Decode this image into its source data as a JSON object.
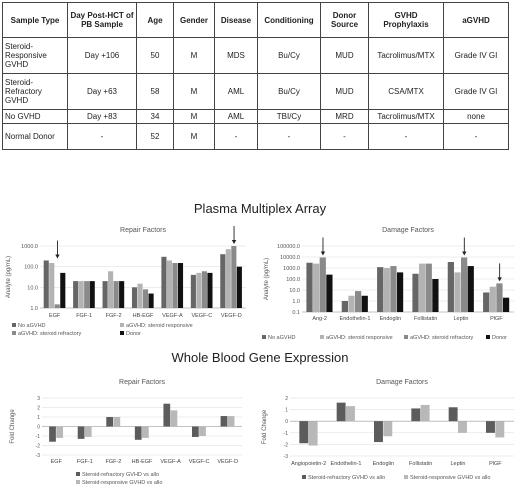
{
  "table": {
    "headers": [
      "Sample Type",
      "Day Post-HCT of PB Sample",
      "Age",
      "Gender",
      "Disease",
      "Conditioning",
      "Donor Source",
      "GVHD Prophylaxis",
      "aGVHD"
    ],
    "rows": [
      [
        "Steroid-Responsive GVHD",
        "Day +106",
        "50",
        "M",
        "MDS",
        "Bu/Cy",
        "MUD",
        "Tacrolimus/MTX",
        "Grade IV GI"
      ],
      [
        "Steroid-Refractory GVHD",
        "Day +63",
        "58",
        "M",
        "AML",
        "Bu/Cy",
        "MUD",
        "CSA/MTX",
        "Grade IV GI"
      ],
      [
        "No GVHD",
        "Day +83",
        "34",
        "M",
        "AML",
        "TBI/Cy",
        "MRD",
        "Tacrolimus/MTX",
        "none"
      ],
      [
        "Normal Donor",
        "-",
        "52",
        "M",
        "-",
        "-",
        "-",
        "-",
        "-"
      ]
    ]
  },
  "section1_title": "Plasma Multiplex Array",
  "section2_title": "Whole Blood Gene Expression",
  "colors": {
    "no_agvhd": "#666666",
    "responsive": "#b3b3b3",
    "refractory": "#8a8a8a",
    "donor": "#111111",
    "wb_refractory": "#5c5c5c",
    "wb_responsive": "#b8b8b8"
  },
  "chart_data": [
    {
      "type": "bar",
      "title": "Repair Factors",
      "ylabel": "Analyte (pg/mL)",
      "scale": "log",
      "ylim": [
        1,
        1000
      ],
      "yticks": [
        1.0,
        10.0,
        100.0,
        1000.0
      ],
      "ytick_labels": [
        "1.0",
        "10.0",
        "100.0",
        "1000.0"
      ],
      "categories": [
        "EGF",
        "FGF-1",
        "FGF-2",
        "HB-EGF",
        "VEGF-A",
        "VEGF-C",
        "VEGF-D"
      ],
      "series": [
        {
          "name": "No aGVHD",
          "values": [
            200,
            20,
            20,
            10,
            300,
            40,
            400
          ]
        },
        {
          "name": "aGVHD: steroid responsive",
          "values": [
            150,
            20,
            60,
            15,
            200,
            50,
            700
          ]
        },
        {
          "name": "aGVHD: steroid refractory",
          "values": [
            1.5,
            20,
            20,
            8,
            150,
            60,
            1000
          ]
        },
        {
          "name": "Donor",
          "values": [
            50,
            20,
            20,
            5,
            150,
            50,
            100
          ]
        }
      ],
      "arrows": [
        "EGF",
        "VEGF-D"
      ],
      "legend": "bottom"
    },
    {
      "type": "bar",
      "title": "Damage Factors",
      "ylabel": "Analyte (pg/mL)",
      "scale": "log",
      "ylim": [
        0.1,
        100000
      ],
      "yticks": [
        0.1,
        1.0,
        10.0,
        100.0,
        1000.0,
        10000.0,
        100000.0
      ],
      "ytick_labels": [
        "0.1",
        "1.0",
        "10.0",
        "100.0",
        "1000.0",
        "10000.0",
        "100000.0"
      ],
      "categories": [
        "Ang-2",
        "Endothelin-1",
        "Endoglin",
        "Follistatin",
        "Leptin",
        "PlGF"
      ],
      "series": [
        {
          "name": "No aGVHD",
          "values": [
            3000,
            1,
            1200,
            300,
            3500,
            6
          ]
        },
        {
          "name": "aGVHD: steroid responsive",
          "values": [
            2500,
            3,
            1000,
            2500,
            400,
            20
          ]
        },
        {
          "name": "aGVHD: steroid refractory",
          "values": [
            9000,
            8,
            1500,
            2500,
            9000,
            40
          ]
        },
        {
          "name": "Donor",
          "values": [
            250,
            3,
            400,
            100,
            1500,
            2
          ]
        }
      ],
      "arrows": [
        "Ang-2",
        "Leptin",
        "PlGF"
      ],
      "legend": "bottom"
    },
    {
      "type": "bar",
      "title": "Repair Factors",
      "ylabel": "Fold Change",
      "ylim": [
        -3,
        3
      ],
      "yticks": [
        -3,
        -2,
        -1,
        0,
        1,
        2,
        3
      ],
      "categories": [
        "EGF",
        "FGF-1",
        "FGF-2",
        "HB-EGF",
        "VEGF-A",
        "VEGF-C",
        "VEGF-D"
      ],
      "series": [
        {
          "name": "Steroid-refractory GVHD vs allo",
          "values": [
            -1.6,
            -1.3,
            1,
            -1.4,
            2.4,
            -1.1,
            1.1
          ]
        },
        {
          "name": "Steroid-responsive GVHD vs allo",
          "values": [
            -1.2,
            -1.1,
            1,
            -1.2,
            1.7,
            -1,
            1.1
          ]
        }
      ],
      "legend": "bottom"
    },
    {
      "type": "bar",
      "title": "Damage Factors",
      "ylabel": "Fold Change",
      "ylim": [
        -3,
        2
      ],
      "yticks": [
        -3,
        -2,
        -1,
        0,
        1,
        2
      ],
      "categories": [
        "Angiopoietin-2",
        "Endothelin-1",
        "Endoglin",
        "Follistatin",
        "Leptin",
        "PlGF"
      ],
      "series": [
        {
          "name": "Steroid-refractory GVHD vs allo",
          "values": [
            -1.9,
            1.6,
            -1.8,
            1.1,
            1.2,
            -1
          ]
        },
        {
          "name": "Steroid-responsive GVHD vs allo",
          "values": [
            -2.1,
            1.3,
            -1.3,
            1.4,
            -1,
            -1.4
          ]
        }
      ],
      "legend": "bottom"
    }
  ]
}
